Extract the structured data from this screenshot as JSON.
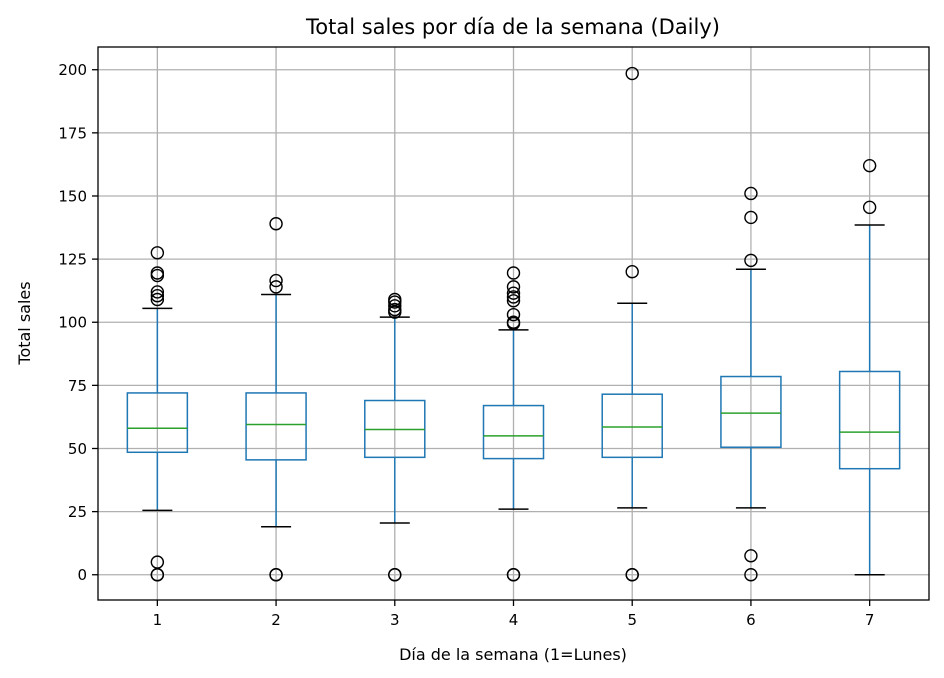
{
  "chart_data": {
    "type": "box",
    "title": "Total sales por día de la semana (Daily)",
    "xlabel": "Día de la semana (1=Lunes)",
    "ylabel": "Total sales",
    "categories": [
      "1",
      "2",
      "3",
      "4",
      "5",
      "6",
      "7"
    ],
    "ylim": [
      -10,
      209
    ],
    "yticks": [
      0,
      25,
      50,
      75,
      100,
      125,
      150,
      175,
      200
    ],
    "grid": true,
    "boxes": [
      {
        "category": "1",
        "whisker_low": 25.5,
        "q1": 48.5,
        "median": 58,
        "q3": 72,
        "whisker_high": 105.5,
        "fliers": [
          0,
          0,
          5,
          109,
          110.5,
          112,
          118.5,
          119.5,
          127.5
        ]
      },
      {
        "category": "2",
        "whisker_low": 19,
        "q1": 45.5,
        "median": 59.5,
        "q3": 72,
        "whisker_high": 111,
        "fliers": [
          0,
          0,
          114,
          116.5,
          139
        ]
      },
      {
        "category": "3",
        "whisker_low": 20.5,
        "q1": 46.5,
        "median": 57.5,
        "q3": 69,
        "whisker_high": 102,
        "fliers": [
          0,
          0,
          104,
          105,
          106.5,
          108,
          109
        ]
      },
      {
        "category": "4",
        "whisker_low": 26,
        "q1": 46,
        "median": 55,
        "q3": 67,
        "whisker_high": 97,
        "fliers": [
          0,
          0,
          99.5,
          100,
          103,
          108.5,
          110,
          111.5,
          114,
          119.5
        ]
      },
      {
        "category": "5",
        "whisker_low": 26.5,
        "q1": 46.5,
        "median": 58.5,
        "q3": 71.5,
        "whisker_high": 107.5,
        "fliers": [
          0,
          0,
          120,
          198.5
        ]
      },
      {
        "category": "6",
        "whisker_low": 26.5,
        "q1": 50.5,
        "median": 64,
        "q3": 78.5,
        "whisker_high": 121,
        "fliers": [
          0,
          7.5,
          124.5,
          141.5,
          151
        ]
      },
      {
        "category": "7",
        "whisker_low": 0,
        "q1": 42,
        "median": 56.5,
        "q3": 80.5,
        "whisker_high": 138.5,
        "fliers": [
          145.5,
          162
        ]
      }
    ],
    "colors": {
      "box": "#1f77b4",
      "median": "#2ca02c",
      "cap": "#000000",
      "flier": "#000000",
      "grid": "#b0b0b0"
    }
  }
}
